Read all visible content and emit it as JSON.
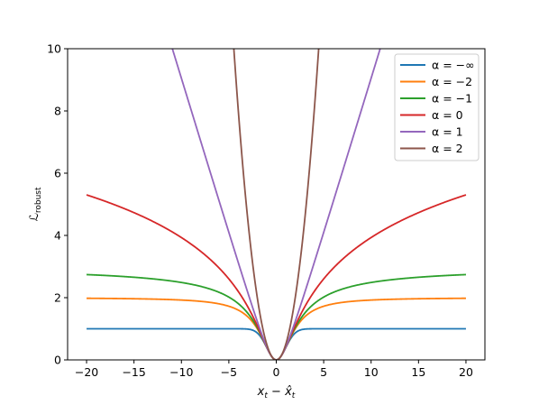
{
  "chart_data": {
    "type": "line",
    "title": "",
    "xlabel_base": "x",
    "xlabel_sub1": "t",
    "xlabel_minus": " − ",
    "xlabel_hat": "x̂",
    "xlabel_sub2": "t",
    "ylabel_base": "ℒ",
    "ylabel_sub": "robust",
    "xlim": [
      -22,
      22
    ],
    "ylim": [
      0,
      10
    ],
    "xticks": [
      -20,
      -15,
      -10,
      -5,
      0,
      5,
      10,
      15,
      20
    ],
    "xtick_labels": [
      "−20",
      "−15",
      "−10",
      "−5",
      "0",
      "5",
      "10",
      "15",
      "20"
    ],
    "yticks": [
      0,
      2,
      4,
      6,
      8,
      10
    ],
    "ytick_labels": [
      "0",
      "2",
      "4",
      "6",
      "8",
      "10"
    ],
    "grid": false,
    "legend_position": "top-right",
    "x_range": [
      -20,
      20
    ],
    "series": [
      {
        "name": "α = −∞",
        "alpha": "-inf",
        "color": "#1f77b4"
      },
      {
        "name": "α = −2",
        "alpha": -2,
        "color": "#ff7f0e"
      },
      {
        "name": "α = −1",
        "alpha": -1,
        "color": "#2ca02c"
      },
      {
        "name": "α = 0",
        "alpha": 0,
        "color": "#d62728"
      },
      {
        "name": "α = 1",
        "alpha": 1,
        "color": "#9467bd"
      },
      {
        "name": "α = 2",
        "alpha": 2,
        "color": "#8c564b"
      }
    ]
  }
}
